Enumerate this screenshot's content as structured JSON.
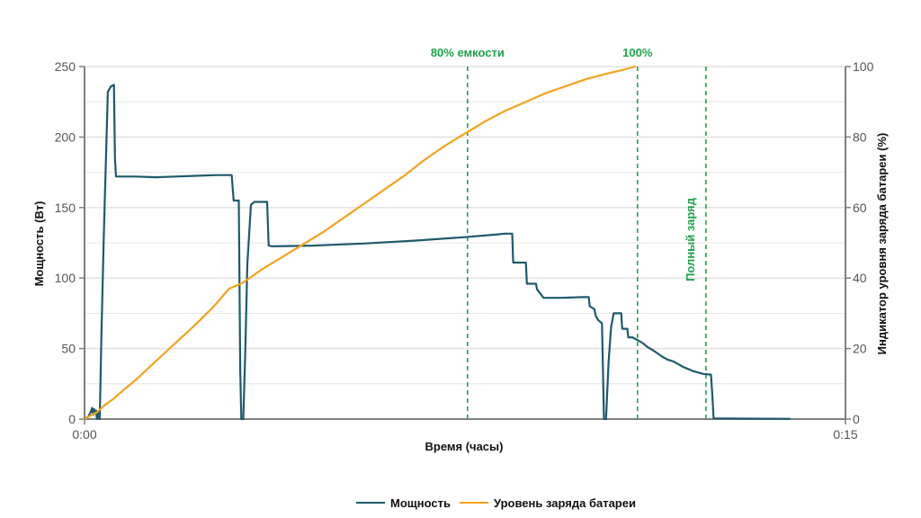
{
  "chart_data": {
    "type": "line",
    "xlabel": "Время (часы)",
    "ylabel_left": "Мощность (Вт)",
    "ylabel_right": "Индикатор уровня заряда батареи (%)",
    "x_unit": "minutes",
    "xlim": [
      0,
      15
    ],
    "ylim_left": [
      0,
      250
    ],
    "ylim_right": [
      0,
      100
    ],
    "x_ticks": [
      {
        "value": 0,
        "label": "0:00"
      },
      {
        "value": 15,
        "label": "0:15"
      }
    ],
    "y_ticks_left": [
      0,
      50,
      100,
      150,
      200,
      250
    ],
    "y_ticks_right": [
      0,
      20,
      40,
      60,
      80,
      100
    ],
    "grid": true,
    "legend_position": "bottom-center",
    "series": [
      {
        "name": "Мощность",
        "axis": "left",
        "color": "#1d5a6e",
        "points": [
          [
            0.0,
            0
          ],
          [
            0.08,
            2
          ],
          [
            0.12,
            5
          ],
          [
            0.15,
            8
          ],
          [
            0.17,
            3
          ],
          [
            0.19,
            7
          ],
          [
            0.21,
            4
          ],
          [
            0.23,
            6
          ],
          [
            0.24,
            1
          ],
          [
            0.25,
            0
          ],
          [
            0.28,
            6
          ],
          [
            0.3,
            0
          ],
          [
            0.33,
            55
          ],
          [
            0.38,
            130
          ],
          [
            0.46,
            232
          ],
          [
            0.52,
            236
          ],
          [
            0.58,
            237
          ],
          [
            0.6,
            185
          ],
          [
            0.62,
            172
          ],
          [
            0.7,
            172
          ],
          [
            1.0,
            172
          ],
          [
            1.4,
            171.5
          ],
          [
            1.8,
            172
          ],
          [
            2.2,
            172.5
          ],
          [
            2.6,
            173
          ],
          [
            2.9,
            173
          ],
          [
            2.94,
            155
          ],
          [
            3.04,
            155
          ],
          [
            3.07,
            35
          ],
          [
            3.09,
            0
          ],
          [
            3.13,
            0
          ],
          [
            3.17,
            50
          ],
          [
            3.21,
            110
          ],
          [
            3.28,
            152
          ],
          [
            3.35,
            154
          ],
          [
            3.6,
            154
          ],
          [
            3.63,
            123
          ],
          [
            3.7,
            122.5
          ],
          [
            4.5,
            123
          ],
          [
            5.5,
            124.5
          ],
          [
            6.5,
            126.5
          ],
          [
            7.5,
            129
          ],
          [
            8.15,
            131
          ],
          [
            8.28,
            131.5
          ],
          [
            8.43,
            131.5
          ],
          [
            8.45,
            111
          ],
          [
            8.5,
            111
          ],
          [
            8.7,
            111
          ],
          [
            8.72,
            96
          ],
          [
            8.9,
            96
          ],
          [
            8.92,
            92
          ],
          [
            9.05,
            86
          ],
          [
            9.4,
            86
          ],
          [
            9.8,
            86.5
          ],
          [
            9.94,
            86.5
          ],
          [
            9.96,
            80
          ],
          [
            10.05,
            78
          ],
          [
            10.08,
            73
          ],
          [
            10.13,
            70
          ],
          [
            10.2,
            68
          ],
          [
            10.22,
            35
          ],
          [
            10.24,
            0
          ],
          [
            10.28,
            0
          ],
          [
            10.33,
            40
          ],
          [
            10.38,
            65
          ],
          [
            10.43,
            75
          ],
          [
            10.58,
            75
          ],
          [
            10.6,
            64
          ],
          [
            10.7,
            64
          ],
          [
            10.72,
            58
          ],
          [
            10.8,
            58
          ],
          [
            10.9,
            56
          ],
          [
            11.0,
            54
          ],
          [
            11.1,
            51
          ],
          [
            11.2,
            49
          ],
          [
            11.3,
            46.5
          ],
          [
            11.4,
            44
          ],
          [
            11.5,
            42
          ],
          [
            11.6,
            41
          ],
          [
            11.7,
            39
          ],
          [
            11.8,
            37
          ],
          [
            11.9,
            35.5
          ],
          [
            12.0,
            34
          ],
          [
            12.1,
            33
          ],
          [
            12.2,
            32
          ],
          [
            12.35,
            31.5
          ],
          [
            12.38,
            15
          ],
          [
            12.4,
            0.5
          ],
          [
            13.0,
            0.3
          ],
          [
            13.9,
            0.2
          ]
        ]
      },
      {
        "name": "Уровень заряда батареи",
        "axis": "right",
        "color": "#f5a31a",
        "points": [
          [
            0.0,
            0
          ],
          [
            0.12,
            1
          ],
          [
            0.25,
            2
          ],
          [
            0.4,
            4
          ],
          [
            0.55,
            5.5
          ],
          [
            0.75,
            8
          ],
          [
            1.0,
            11
          ],
          [
            1.3,
            15
          ],
          [
            1.6,
            19
          ],
          [
            1.9,
            23
          ],
          [
            2.2,
            27
          ],
          [
            2.55,
            32
          ],
          [
            2.85,
            37
          ],
          [
            3.1,
            38.5
          ],
          [
            3.5,
            42.5
          ],
          [
            3.9,
            46
          ],
          [
            4.3,
            49.5
          ],
          [
            4.7,
            53
          ],
          [
            5.1,
            57
          ],
          [
            5.5,
            61
          ],
          [
            5.9,
            65
          ],
          [
            6.3,
            69
          ],
          [
            6.7,
            73.5
          ],
          [
            7.1,
            77.5
          ],
          [
            7.5,
            81
          ],
          [
            7.9,
            84.5
          ],
          [
            8.3,
            87.5
          ],
          [
            8.7,
            90
          ],
          [
            9.1,
            92.5
          ],
          [
            9.5,
            94.5
          ],
          [
            9.9,
            96.5
          ],
          [
            10.3,
            98
          ],
          [
            10.6,
            99
          ],
          [
            10.85,
            100
          ]
        ]
      }
    ],
    "annotations": [
      {
        "x": 7.55,
        "label": "80% емкости",
        "orientation": "horizontal"
      },
      {
        "x": 10.9,
        "label": "100%",
        "orientation": "horizontal"
      },
      {
        "x": 12.25,
        "label": "Полный заряд",
        "orientation": "vertical"
      }
    ],
    "colors": {
      "grid": "#e0e0e0",
      "axis": "#7f7f7f",
      "annotation": "#1ea34a"
    }
  }
}
